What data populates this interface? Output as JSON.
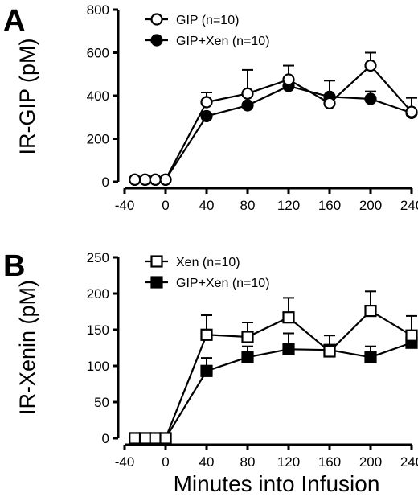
{
  "figure": {
    "xlabel": "Minutes into Infusion"
  },
  "chart_data": [
    {
      "panel": "A",
      "type": "line",
      "ylabel": "IR-GIP (pM)",
      "xlim": [
        -40,
        240
      ],
      "ylim": [
        0,
        800
      ],
      "xticks": [
        -40,
        0,
        40,
        80,
        120,
        160,
        200,
        240
      ],
      "xtick_labels": [
        "-40",
        "0",
        "40",
        "80",
        "120",
        "160",
        "200",
        "240"
      ],
      "yticks": [
        0,
        200,
        400,
        600,
        800
      ],
      "ytick_labels": [
        "0",
        "200",
        "400",
        "600",
        "800"
      ],
      "legend_placement": "top-left",
      "grid": false,
      "series": [
        {
          "name": "GIP (n=10)",
          "marker": "circle-open",
          "x": [
            -30,
            -20,
            -10,
            0,
            40,
            80,
            120,
            160,
            200,
            240
          ],
          "y": [
            10,
            10,
            10,
            10,
            370,
            410,
            475,
            365,
            540,
            325
          ],
          "err": [
            0,
            0,
            0,
            0,
            45,
            110,
            65,
            0,
            60,
            0
          ]
        },
        {
          "name": "GIP+Xen (n=10)",
          "marker": "circle-filled",
          "x": [
            -30,
            -20,
            -10,
            0,
            40,
            80,
            120,
            160,
            200,
            240
          ],
          "y": [
            10,
            10,
            10,
            10,
            305,
            355,
            445,
            395,
            385,
            320
          ],
          "err": [
            0,
            0,
            0,
            0,
            0,
            0,
            0,
            75,
            35,
            70
          ]
        }
      ]
    },
    {
      "panel": "B",
      "type": "line",
      "ylabel": "IR-Xenin (pM)",
      "xlim": [
        -40,
        240
      ],
      "ylim": [
        0,
        250
      ],
      "xticks": [
        -40,
        0,
        40,
        80,
        120,
        160,
        200,
        240
      ],
      "xtick_labels": [
        "-40",
        "0",
        "40",
        "80",
        "120",
        "160",
        "200",
        "240"
      ],
      "yticks": [
        0,
        50,
        100,
        150,
        200,
        250
      ],
      "ytick_labels": [
        "0",
        "50",
        "100",
        "150",
        "200",
        "250"
      ],
      "legend_placement": "top-left",
      "grid": false,
      "series": [
        {
          "name": "Xen (n=10)",
          "marker": "square-open",
          "x": [
            -30,
            -20,
            -10,
            0,
            40,
            80,
            120,
            160,
            200,
            240
          ],
          "y": [
            0,
            0,
            0,
            0,
            143,
            140,
            167,
            120,
            176,
            142
          ],
          "err": [
            0,
            0,
            0,
            0,
            27,
            20,
            27,
            22,
            27,
            27
          ]
        },
        {
          "name": "GIP+Xen (n=10)",
          "marker": "square-filled",
          "x": [
            -30,
            -20,
            -10,
            0,
            40,
            80,
            120,
            160,
            200,
            240
          ],
          "y": [
            0,
            0,
            0,
            0,
            93,
            112,
            123,
            122,
            112,
            132
          ],
          "err": [
            0,
            0,
            0,
            0,
            18,
            15,
            22,
            0,
            15,
            0
          ]
        }
      ]
    }
  ]
}
